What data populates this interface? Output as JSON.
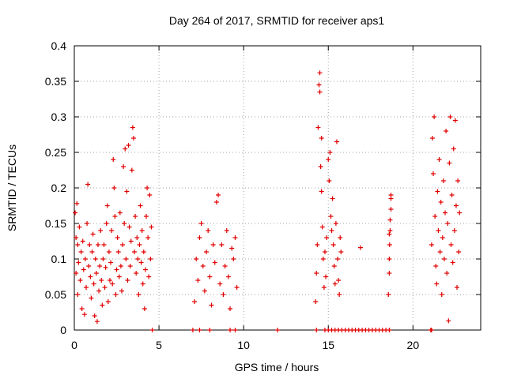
{
  "chart_data": {
    "type": "scatter",
    "title": "Day 264 of 2017, SRMTID for receiver aps1",
    "xlabel": "GPS time / hours",
    "ylabel": "SRMTID / TECUs",
    "xlim": [
      0,
      24
    ],
    "ylim": [
      0,
      0.4
    ],
    "x_ticks": [
      0,
      5,
      10,
      15,
      20
    ],
    "x_tick_labels": [
      "0",
      "5",
      "10",
      "15",
      "20"
    ],
    "y_ticks": [
      0,
      0.05,
      0.1,
      0.15,
      0.2,
      0.25,
      0.3,
      0.35,
      0.4
    ],
    "y_tick_labels": [
      "0",
      "0.05",
      "0.1",
      "0.15",
      "0.2",
      "0.25",
      "0.3",
      "0.35",
      "0.4"
    ],
    "grid": true,
    "marker": "plus",
    "color": "#e00000",
    "series": [
      {
        "name": "SRMTID",
        "points": [
          [
            0.05,
            0.165
          ],
          [
            0.1,
            0.13
          ],
          [
            0.1,
            0.08
          ],
          [
            0.15,
            0.178
          ],
          [
            0.2,
            0.12
          ],
          [
            0.2,
            0.05
          ],
          [
            0.25,
            0.095
          ],
          [
            0.3,
            0.145
          ],
          [
            0.35,
            0.07
          ],
          [
            0.4,
            0.11
          ],
          [
            0.45,
            0.03
          ],
          [
            0.5,
            0.125
          ],
          [
            0.55,
            0.085
          ],
          [
            0.6,
            0.022
          ],
          [
            0.65,
            0.1
          ],
          [
            0.7,
            0.06
          ],
          [
            0.75,
            0.15
          ],
          [
            0.8,
            0.205
          ],
          [
            0.85,
            0.09
          ],
          [
            0.9,
            0.12
          ],
          [
            0.95,
            0.075
          ],
          [
            1.0,
            0.045
          ],
          [
            1.05,
            0.11
          ],
          [
            1.1,
            0.135
          ],
          [
            1.15,
            0.065
          ],
          [
            1.2,
            0.02
          ],
          [
            1.25,
            0.1
          ],
          [
            1.3,
            0.08
          ],
          [
            1.35,
            0.012
          ],
          [
            1.4,
            0.12
          ],
          [
            1.45,
            0.055
          ],
          [
            1.5,
            0.09
          ],
          [
            1.55,
            0.14
          ],
          [
            1.6,
            0.07
          ],
          [
            1.65,
            0.035
          ],
          [
            1.7,
            0.1
          ],
          [
            1.75,
            0.12
          ],
          [
            1.8,
            0.06
          ],
          [
            1.85,
            0.088
          ],
          [
            1.9,
            0.15
          ],
          [
            1.95,
            0.175
          ],
          [
            2.0,
            0.04
          ],
          [
            2.05,
            0.11
          ],
          [
            2.1,
            0.07
          ],
          [
            2.15,
            0.095
          ],
          [
            2.2,
            0.14
          ],
          [
            2.25,
            0.065
          ],
          [
            2.3,
            0.24
          ],
          [
            2.35,
            0.2
          ],
          [
            2.4,
            0.16
          ],
          [
            2.45,
            0.05
          ],
          [
            2.5,
            0.085
          ],
          [
            2.55,
            0.13
          ],
          [
            2.6,
            0.11
          ],
          [
            2.65,
            0.075
          ],
          [
            2.7,
            0.165
          ],
          [
            2.75,
            0.09
          ],
          [
            2.8,
            0.055
          ],
          [
            2.85,
            0.12
          ],
          [
            2.9,
            0.23
          ],
          [
            2.95,
            0.15
          ],
          [
            3.0,
            0.255
          ],
          [
            3.05,
            0.1
          ],
          [
            3.1,
            0.195
          ],
          [
            3.15,
            0.07
          ],
          [
            3.2,
            0.26
          ],
          [
            3.25,
            0.145
          ],
          [
            3.3,
            0.09
          ],
          [
            3.35,
            0.125
          ],
          [
            3.4,
            0.225
          ],
          [
            3.45,
            0.285
          ],
          [
            3.5,
            0.27
          ],
          [
            3.55,
            0.11
          ],
          [
            3.6,
            0.16
          ],
          [
            3.65,
            0.08
          ],
          [
            3.7,
            0.13
          ],
          [
            3.75,
            0.1
          ],
          [
            3.8,
            0.05
          ],
          [
            3.85,
            0.12
          ],
          [
            3.9,
            0.175
          ],
          [
            3.95,
            0.095
          ],
          [
            4.0,
            0.14
          ],
          [
            4.05,
            0.065
          ],
          [
            4.1,
            0.11
          ],
          [
            4.15,
            0.03
          ],
          [
            4.2,
            0.085
          ],
          [
            4.25,
            0.16
          ],
          [
            4.3,
            0.2
          ],
          [
            4.35,
            0.13
          ],
          [
            4.4,
            0.075
          ],
          [
            4.45,
            0.19
          ],
          [
            4.5,
            0.1
          ],
          [
            4.55,
            0.145
          ],
          [
            4.6,
            0.0
          ],
          [
            7.1,
            0.04
          ],
          [
            7.2,
            0.1
          ],
          [
            7.3,
            0.07
          ],
          [
            7.4,
            0.13
          ],
          [
            7.5,
            0.15
          ],
          [
            7.6,
            0.09
          ],
          [
            7.7,
            0.055
          ],
          [
            7.8,
            0.11
          ],
          [
            7.9,
            0.14
          ],
          [
            8.0,
            0.075
          ],
          [
            8.1,
            0.035
          ],
          [
            8.2,
            0.12
          ],
          [
            8.3,
            0.095
          ],
          [
            8.4,
            0.18
          ],
          [
            8.5,
            0.19
          ],
          [
            8.6,
            0.065
          ],
          [
            8.7,
            0.12
          ],
          [
            8.8,
            0.05
          ],
          [
            8.9,
            0.09
          ],
          [
            9.0,
            0.14
          ],
          [
            9.1,
            0.075
          ],
          [
            9.2,
            0.03
          ],
          [
            9.3,
            0.115
          ],
          [
            9.4,
            0.1
          ],
          [
            9.5,
            0.13
          ],
          [
            9.6,
            0.06
          ],
          [
            7.0,
            0.0
          ],
          [
            7.4,
            0.0
          ],
          [
            8.0,
            0.0
          ],
          [
            9.2,
            0.0
          ],
          [
            9.5,
            0.0
          ],
          [
            12.0,
            0.0
          ],
          [
            14.25,
            0.04
          ],
          [
            14.3,
            0.08
          ],
          [
            14.35,
            0.12
          ],
          [
            14.4,
            0.285
          ],
          [
            14.45,
            0.345
          ],
          [
            14.5,
            0.362
          ],
          [
            14.5,
            0.335
          ],
          [
            14.55,
            0.23
          ],
          [
            14.6,
            0.27
          ],
          [
            14.6,
            0.195
          ],
          [
            14.65,
            0.145
          ],
          [
            14.7,
            0.1
          ],
          [
            14.75,
            0.06
          ],
          [
            14.8,
            0.11
          ],
          [
            14.85,
            0.075
          ],
          [
            14.9,
            0.13
          ],
          [
            15.0,
            0.24
          ],
          [
            15.05,
            0.21
          ],
          [
            15.1,
            0.25
          ],
          [
            15.15,
            0.16
          ],
          [
            15.2,
            0.14
          ],
          [
            15.25,
            0.185
          ],
          [
            15.3,
            0.12
          ],
          [
            15.35,
            0.09
          ],
          [
            15.4,
            0.065
          ],
          [
            15.45,
            0.15
          ],
          [
            15.5,
            0.265
          ],
          [
            15.55,
            0.1
          ],
          [
            15.6,
            0.07
          ],
          [
            15.65,
            0.05
          ],
          [
            15.7,
            0.13
          ],
          [
            15.75,
            0.11
          ],
          [
            14.3,
            0.0
          ],
          [
            14.8,
            0.0
          ],
          [
            15.0,
            0.0
          ],
          [
            15.2,
            0.0
          ],
          [
            15.4,
            0.0
          ],
          [
            15.6,
            0.0
          ],
          [
            15.8,
            0.0
          ],
          [
            16.0,
            0.0
          ],
          [
            16.2,
            0.0
          ],
          [
            16.4,
            0.0
          ],
          [
            16.6,
            0.0
          ],
          [
            16.8,
            0.0
          ],
          [
            17.0,
            0.0
          ],
          [
            17.2,
            0.0
          ],
          [
            17.4,
            0.0
          ],
          [
            17.6,
            0.0
          ],
          [
            17.8,
            0.0
          ],
          [
            18.0,
            0.0
          ],
          [
            18.2,
            0.0
          ],
          [
            18.4,
            0.0
          ],
          [
            18.6,
            0.0
          ],
          [
            16.9,
            0.116
          ],
          [
            18.55,
            0.05
          ],
          [
            18.6,
            0.08
          ],
          [
            18.6,
            0.1
          ],
          [
            18.62,
            0.12
          ],
          [
            18.65,
            0.14
          ],
          [
            18.65,
            0.155
          ],
          [
            18.7,
            0.17
          ],
          [
            18.7,
            0.185
          ],
          [
            18.7,
            0.19
          ],
          [
            18.6,
            0.135
          ],
          [
            21.05,
            0.0
          ],
          [
            21.1,
            0.0
          ],
          [
            21.1,
            0.12
          ],
          [
            21.15,
            0.27
          ],
          [
            21.2,
            0.22
          ],
          [
            21.25,
            0.3
          ],
          [
            21.3,
            0.16
          ],
          [
            21.35,
            0.09
          ],
          [
            21.4,
            0.065
          ],
          [
            21.45,
            0.195
          ],
          [
            21.5,
            0.14
          ],
          [
            21.55,
            0.24
          ],
          [
            21.6,
            0.11
          ],
          [
            21.65,
            0.18
          ],
          [
            21.7,
            0.05
          ],
          [
            21.75,
            0.13
          ],
          [
            21.8,
            0.21
          ],
          [
            21.85,
            0.1
          ],
          [
            21.9,
            0.165
          ],
          [
            21.95,
            0.28
          ],
          [
            22.0,
            0.08
          ],
          [
            22.05,
            0.15
          ],
          [
            22.1,
            0.013
          ],
          [
            22.15,
            0.235
          ],
          [
            22.2,
            0.3
          ],
          [
            22.25,
            0.12
          ],
          [
            22.3,
            0.19
          ],
          [
            22.35,
            0.095
          ],
          [
            22.4,
            0.255
          ],
          [
            22.45,
            0.14
          ],
          [
            22.5,
            0.295
          ],
          [
            22.55,
            0.175
          ],
          [
            22.6,
            0.06
          ],
          [
            22.65,
            0.21
          ],
          [
            22.7,
            0.11
          ],
          [
            22.75,
            0.165
          ]
        ]
      }
    ]
  }
}
